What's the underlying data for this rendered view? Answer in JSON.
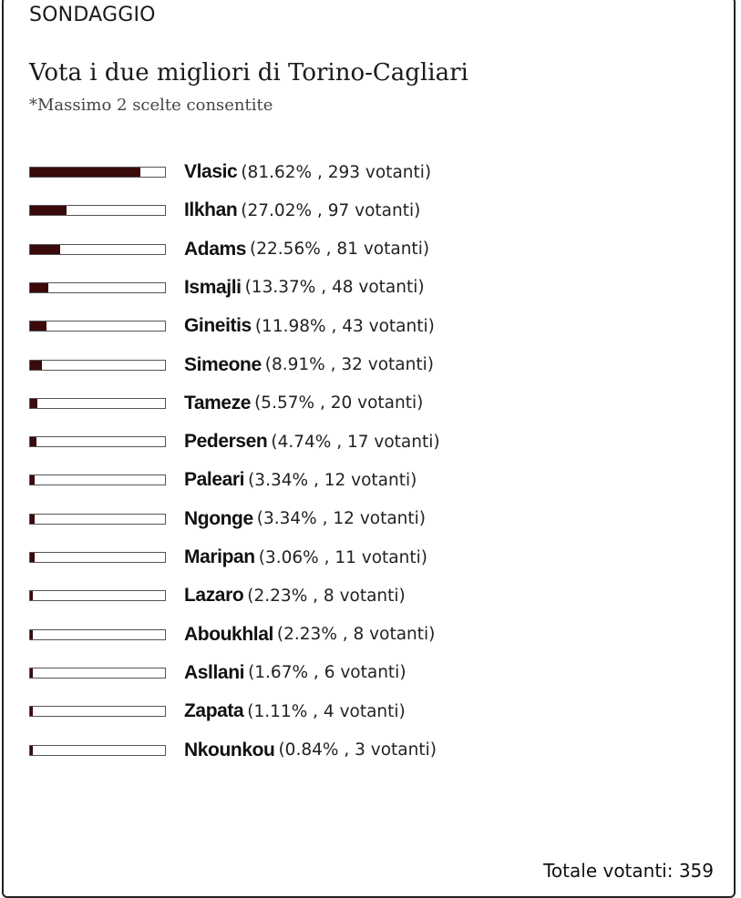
{
  "poll": {
    "section_label": "SONDAGGIO",
    "title": "Vota i due migliori di Torino-Cagliari",
    "subtitle": "*Massimo 2 scelte consentite",
    "bar_color": "#3a0a0a",
    "total_label": "Totale votanti: 359",
    "results": [
      {
        "name": "Vlasic",
        "stats": "(81.62% , 293 votanti)",
        "percent": 81.62
      },
      {
        "name": "Ilkhan",
        "stats": "(27.02% , 97 votanti)",
        "percent": 27.02
      },
      {
        "name": "Adams",
        "stats": "(22.56% , 81 votanti)",
        "percent": 22.56
      },
      {
        "name": "Ismajli",
        "stats": "(13.37% , 48 votanti)",
        "percent": 13.37
      },
      {
        "name": "Gineitis",
        "stats": "(11.98% , 43 votanti)",
        "percent": 11.98
      },
      {
        "name": "Simeone",
        "stats": "(8.91% , 32 votanti)",
        "percent": 8.91
      },
      {
        "name": "Tameze",
        "stats": "(5.57% , 20 votanti)",
        "percent": 5.57
      },
      {
        "name": "Pedersen",
        "stats": "(4.74% , 17 votanti)",
        "percent": 4.74
      },
      {
        "name": "Paleari",
        "stats": "(3.34% , 12 votanti)",
        "percent": 3.34
      },
      {
        "name": "Ngonge",
        "stats": "(3.34% , 12 votanti)",
        "percent": 3.34
      },
      {
        "name": "Maripan",
        "stats": "(3.06% , 11 votanti)",
        "percent": 3.06
      },
      {
        "name": "Lazaro",
        "stats": "(2.23% , 8 votanti)",
        "percent": 2.23
      },
      {
        "name": "Aboukhlal",
        "stats": "(2.23% , 8 votanti)",
        "percent": 2.23
      },
      {
        "name": "Asllani",
        "stats": "(1.67% , 6 votanti)",
        "percent": 1.67
      },
      {
        "name": "Zapata",
        "stats": "(1.11% , 4 votanti)",
        "percent": 1.11
      },
      {
        "name": "Nkounkou",
        "stats": "(0.84% , 3 votanti)",
        "percent": 0.84
      }
    ]
  }
}
